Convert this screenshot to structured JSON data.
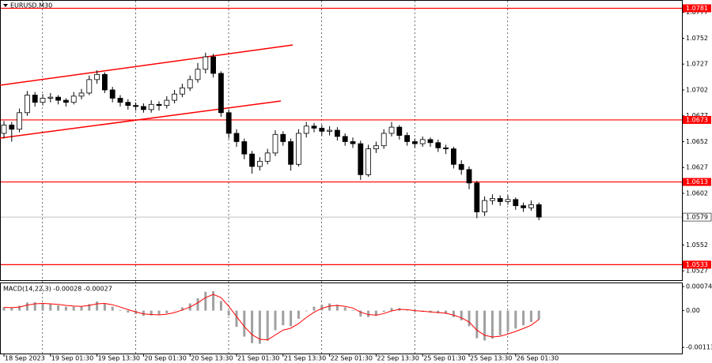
{
  "chart_data": [
    {
      "type": "candlestick",
      "title": "EURUSD,M30",
      "categories": [
        "18 Sep 2023",
        null,
        null,
        null,
        null,
        null,
        "19 Sep 01:30",
        null,
        null,
        null,
        null,
        null,
        "19 Sep 13:30",
        null,
        null,
        null,
        null,
        null,
        "20 Sep 01:30",
        null,
        null,
        null,
        null,
        null,
        "20 Sep 13:30",
        null,
        null,
        null,
        null,
        null,
        "21 Sep 01:30",
        null,
        null,
        null,
        null,
        null,
        "21 Sep 13:30",
        null,
        null,
        null,
        null,
        null,
        "22 Sep 01:30",
        null,
        null,
        null,
        null,
        null,
        "22 Sep 13:30",
        null,
        null,
        null,
        null,
        null,
        "25 Sep 01:30",
        null,
        null,
        null,
        null,
        null,
        "25 Sep 13:30",
        null,
        null,
        null,
        null,
        null,
        "26 Sep 01:30",
        null,
        null,
        null
      ],
      "open": [
        1.066,
        1.0668,
        1.0664,
        1.068,
        1.0697,
        1.069,
        1.0694,
        1.0695,
        1.0692,
        1.069,
        1.0696,
        1.0699,
        1.0712,
        1.0717,
        1.0702,
        1.0694,
        1.069,
        1.0687,
        1.0686,
        1.0683,
        1.0688,
        1.0687,
        1.0692,
        1.0698,
        1.0704,
        1.0712,
        1.0722,
        1.0734,
        1.0718,
        1.068,
        1.066,
        1.0652,
        1.064,
        1.0628,
        1.0633,
        1.0641,
        1.0659,
        1.0652,
        1.063,
        1.066,
        1.0667,
        1.0665,
        1.0662,
        1.0663,
        1.0657,
        1.0652,
        1.065,
        1.062,
        1.0645,
        1.0648,
        1.066,
        1.0666,
        1.0658,
        1.0652,
        1.065,
        1.0654,
        1.0651,
        1.0646,
        1.0645,
        1.063,
        1.0625,
        1.0612,
        1.0584,
        1.0595,
        1.0597,
        1.0594,
        1.0596,
        1.059,
        1.0588,
        1.0591
      ],
      "high": [
        1.0672,
        1.0671,
        1.0684,
        1.0701,
        1.07,
        1.0698,
        1.0699,
        1.0697,
        1.0694,
        1.07,
        1.0703,
        1.0716,
        1.0721,
        1.0719,
        1.0705,
        1.0697,
        1.0693,
        1.069,
        1.0689,
        1.0692,
        1.0691,
        1.0696,
        1.0702,
        1.0708,
        1.0716,
        1.0728,
        1.0738,
        1.0737,
        1.072,
        1.0683,
        1.0664,
        1.0655,
        1.0643,
        1.0637,
        1.0645,
        1.0663,
        1.0662,
        1.0655,
        1.0664,
        1.0671,
        1.067,
        1.0668,
        1.0667,
        1.0666,
        1.066,
        1.0656,
        1.0653,
        1.0649,
        1.0652,
        1.0664,
        1.0671,
        1.0668,
        1.0661,
        1.0655,
        1.0657,
        1.0656,
        1.0654,
        1.0649,
        1.0647,
        1.0634,
        1.0628,
        1.0614,
        1.0599,
        1.0601,
        1.06,
        1.06,
        1.0598,
        1.0593,
        1.0595,
        1.0593
      ],
      "low": [
        1.0655,
        1.0652,
        1.0661,
        1.0677,
        1.0686,
        1.0687,
        1.069,
        1.0688,
        1.0686,
        1.0688,
        1.0693,
        1.0697,
        1.0708,
        1.0699,
        1.069,
        1.0686,
        1.0683,
        1.0682,
        1.068,
        1.068,
        1.0682,
        1.0684,
        1.0689,
        1.0695,
        1.0701,
        1.0709,
        1.0718,
        1.0714,
        1.0676,
        1.0655,
        1.0647,
        1.0635,
        1.0621,
        1.0624,
        1.063,
        1.0638,
        1.0648,
        1.0624,
        1.0628,
        1.0656,
        1.0661,
        1.0658,
        1.0658,
        1.0653,
        1.0648,
        1.0646,
        1.0615,
        1.0618,
        1.0641,
        1.0645,
        1.0657,
        1.0654,
        1.0648,
        1.0646,
        1.0647,
        1.0647,
        1.0642,
        1.064,
        1.0626,
        1.062,
        1.0606,
        1.0578,
        1.058,
        1.0591,
        1.059,
        1.0591,
        1.0586,
        1.0584,
        1.0585,
        1.0576
      ],
      "close": [
        1.0668,
        1.0664,
        1.068,
        1.0697,
        1.069,
        1.0694,
        1.0695,
        1.0692,
        1.069,
        1.0696,
        1.0699,
        1.0712,
        1.0717,
        1.0702,
        1.0694,
        1.069,
        1.0687,
        1.0686,
        1.0683,
        1.0688,
        1.0687,
        1.0692,
        1.0698,
        1.0704,
        1.0712,
        1.0722,
        1.0734,
        1.0718,
        1.068,
        1.066,
        1.0652,
        1.064,
        1.0628,
        1.0633,
        1.0641,
        1.0659,
        1.0652,
        1.063,
        1.066,
        1.0667,
        1.0665,
        1.0662,
        1.0663,
        1.0657,
        1.0652,
        1.065,
        1.062,
        1.0645,
        1.0648,
        1.066,
        1.0666,
        1.0658,
        1.0652,
        1.065,
        1.0654,
        1.0651,
        1.0646,
        1.0645,
        1.063,
        1.0625,
        1.0612,
        1.0584,
        1.0595,
        1.0597,
        1.0594,
        1.0596,
        1.059,
        1.0588,
        1.0591,
        1.0579
      ],
      "color": "#000000",
      "ylim": [
        1.0518,
        1.0789
      ],
      "yticks": [
        1.0527,
        1.0552,
        1.0577,
        1.0602,
        1.0627,
        1.0652,
        1.0677,
        1.0702,
        1.0727,
        1.0752,
        1.0777
      ],
      "levels": [
        1.0781,
        1.0673,
        1.0613,
        1.0533
      ],
      "level_color": "#ff0000",
      "current_price": 1.0579
    },
    {
      "type": "macd",
      "title": "MACD(14,22,3) -0.00028 -0.00027",
      "histogram": {
        "color": "#a0a0a0",
        "values": [
          0.0001,
          8e-05,
          0.00015,
          0.00025,
          0.00026,
          0.00022,
          0.0002,
          0.00016,
          0.00012,
          0.00012,
          0.00012,
          0.0002,
          0.00028,
          0.00022,
          0.00012,
          2e-05,
          -6e-05,
          -0.00011,
          -0.00016,
          -0.00015,
          -0.00013,
          -8e-05,
          0.0,
          0.0001,
          0.00022,
          0.00038,
          0.00058,
          0.0006,
          0.0003,
          -0.00015,
          -0.0005,
          -0.0008,
          -0.001,
          -0.00102,
          -0.00092,
          -0.0006,
          -0.00045,
          -0.00048,
          -0.00025,
          -2e-05,
          0.00012,
          0.00018,
          0.00022,
          0.00018,
          0.0001,
          2e-05,
          -0.00018,
          -0.0002,
          -0.00016,
          -4e-05,
          8e-05,
          8e-05,
          2e-05,
          -4e-05,
          -4e-05,
          -6e-05,
          -8e-05,
          -0.0001,
          -0.0002,
          -0.0003,
          -0.00048,
          -0.00085,
          -0.00092,
          -0.00086,
          -0.00076,
          -0.00065,
          -0.00055,
          -0.00045,
          -0.00035,
          -0.00028
        ]
      },
      "signal": {
        "color": "#ff0000",
        "values": [
          0.0001,
          9e-05,
          0.00011,
          0.00017,
          0.00021,
          0.00022,
          0.00021,
          0.00019,
          0.00016,
          0.00014,
          0.00013,
          0.00016,
          0.00021,
          0.00022,
          0.00018,
          0.00011,
          3e-05,
          -4e-05,
          -0.0001,
          -0.00012,
          -0.00013,
          -0.00011,
          -6e-05,
          2e-05,
          0.00011,
          0.00024,
          0.0004,
          0.0005,
          0.0004,
          0.00013,
          -0.00018,
          -0.00049,
          -0.00074,
          -0.00088,
          -0.0009,
          -0.00075,
          -0.0006,
          -0.00054,
          -0.0004,
          -0.00021,
          -5e-05,
          7e-05,
          0.00014,
          0.00016,
          0.00013,
          8e-05,
          -5e-05,
          -0.00012,
          -0.00014,
          -9e-05,
          -1e-05,
          4e-05,
          3e-05,
          0.0,
          -2e-05,
          -4e-05,
          -6e-05,
          -8e-05,
          -0.00014,
          -0.00022,
          -0.00035,
          -0.0006,
          -0.00076,
          -0.00081,
          -0.00079,
          -0.00072,
          -0.00064,
          -0.00055,
          -0.00045,
          -0.00027
        ]
      },
      "ylim": [
        -0.00132,
        0.00084
      ],
      "yticks": [
        -0.00113,
        {
          "value": 0,
          "label": "0.00"
        },
        0.00074
      ]
    }
  ]
}
